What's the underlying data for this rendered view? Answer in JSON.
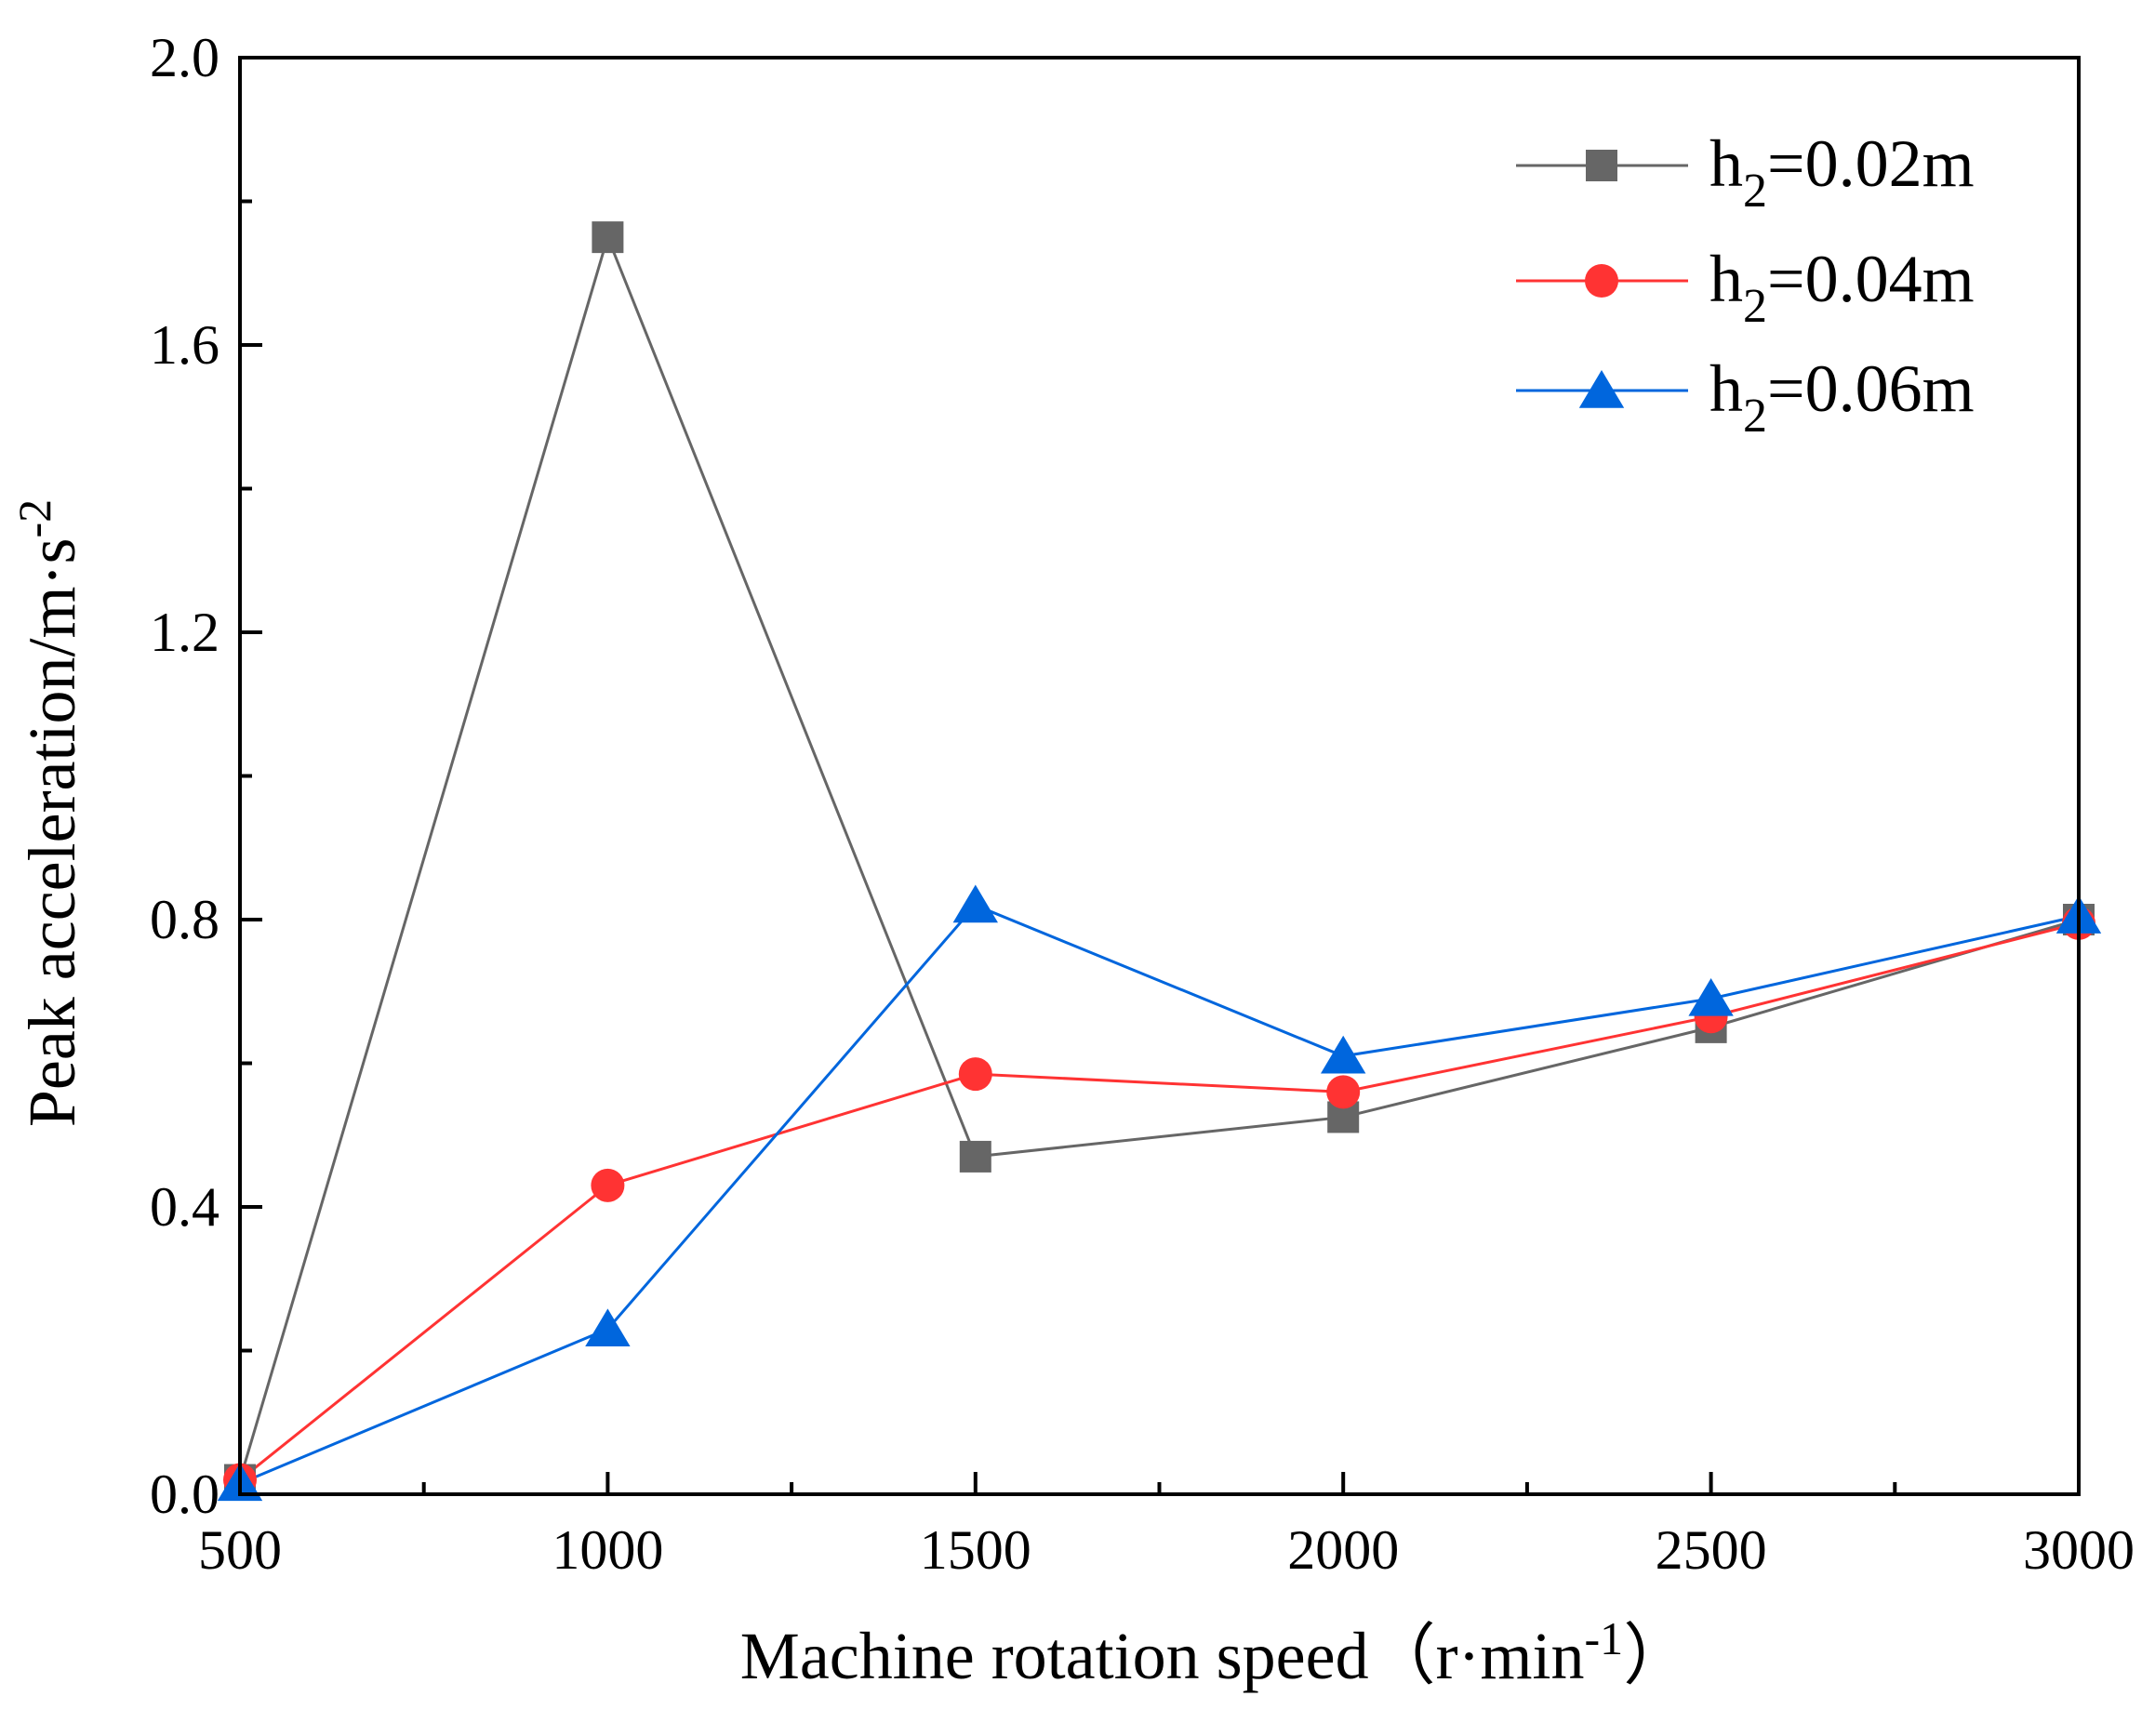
{
  "chart_data": {
    "type": "line",
    "xlabel": "Machine rotation speed（r·min",
    "xlabel_superscript": "-1",
    "xlabel_suffix": "）",
    "ylabel": "Peak acceleration/m·s",
    "ylabel_superscript": "-2",
    "xlim": [
      500,
      3000
    ],
    "ylim": [
      0,
      2.0
    ],
    "x_ticks": [
      "500",
      "1000",
      "1500",
      "2000",
      "2500",
      "3000"
    ],
    "y_ticks": [
      "0.0",
      "0.4",
      "0.8",
      "1.2",
      "1.6",
      "2.0"
    ],
    "x_tick_values": [
      500,
      1000,
      1500,
      2000,
      2500,
      3000
    ],
    "y_tick_values": [
      0,
      0.4,
      0.8,
      1.2,
      1.6,
      2.0
    ],
    "grid": false,
    "legend_position": "top-right",
    "x": [
      500,
      1000,
      1500,
      2000,
      2500,
      3000
    ],
    "series": [
      {
        "name": "h₂=0.02m",
        "name_base": "h",
        "name_sub": "2",
        "name_rest": "=0.02m",
        "color": "#666666",
        "marker": "square",
        "values": [
          0.02,
          1.75,
          0.47,
          0.525,
          0.65,
          0.8
        ]
      },
      {
        "name": "h₂=0.04m",
        "name_base": "h",
        "name_sub": "2",
        "name_rest": "=0.04m",
        "color": "#ff3333",
        "marker": "circle",
        "values": [
          0.02,
          0.43,
          0.585,
          0.56,
          0.665,
          0.795
        ]
      },
      {
        "name": "h₂=0.06m",
        "name_base": "h",
        "name_sub": "2",
        "name_rest": "=0.06m",
        "color": "#0066dd",
        "marker": "triangle",
        "values": [
          0.015,
          0.23,
          0.82,
          0.61,
          0.69,
          0.805
        ]
      }
    ]
  }
}
